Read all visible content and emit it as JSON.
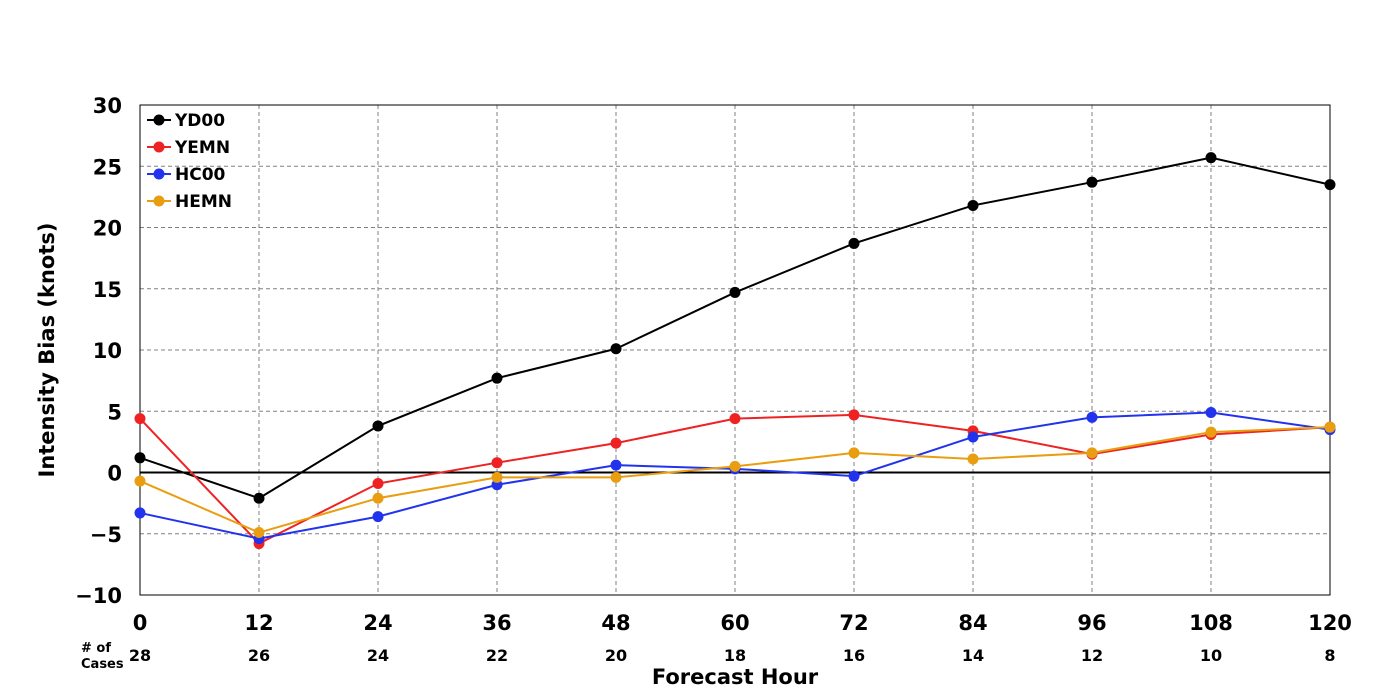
{
  "chart_data": {
    "type": "line",
    "xlabel": "Forecast Hour",
    "ylabel": "Intensity Bias (knots)",
    "x": [
      0,
      12,
      24,
      36,
      48,
      60,
      72,
      84,
      96,
      108,
      120
    ],
    "xlim": [
      0,
      120
    ],
    "ylim": [
      -10,
      30
    ],
    "yticks": [
      -10,
      -5,
      0,
      5,
      10,
      15,
      20,
      25,
      30
    ],
    "ytick_labels": [
      "−10",
      "−5",
      "0",
      "5",
      "10",
      "15",
      "20",
      "25",
      "30"
    ],
    "grid": true,
    "zero_line": true,
    "legend_position": "top-left",
    "cases_label": [
      "# of",
      "Cases"
    ],
    "cases": [
      28,
      26,
      24,
      22,
      20,
      18,
      16,
      14,
      12,
      10,
      8
    ],
    "series": [
      {
        "name": "YD00",
        "color": "#000000",
        "values": [
          1.2,
          -2.1,
          3.8,
          7.7,
          10.1,
          14.7,
          18.7,
          21.8,
          23.7,
          25.7,
          23.5
        ]
      },
      {
        "name": "YEMN",
        "color": "#ee2222",
        "values": [
          4.4,
          -5.8,
          -0.9,
          0.8,
          2.4,
          4.4,
          4.7,
          3.4,
          1.5,
          3.1,
          3.7
        ]
      },
      {
        "name": "HC00",
        "color": "#2233ee",
        "values": [
          -3.3,
          -5.4,
          -3.6,
          -1.0,
          0.6,
          0.3,
          -0.3,
          2.9,
          4.5,
          4.9,
          3.5
        ]
      },
      {
        "name": "HEMN",
        "color": "#e89e10",
        "values": [
          -0.7,
          -4.9,
          -2.1,
          -0.4,
          -0.4,
          0.5,
          1.6,
          1.1,
          1.6,
          3.3,
          3.7
        ]
      }
    ]
  }
}
